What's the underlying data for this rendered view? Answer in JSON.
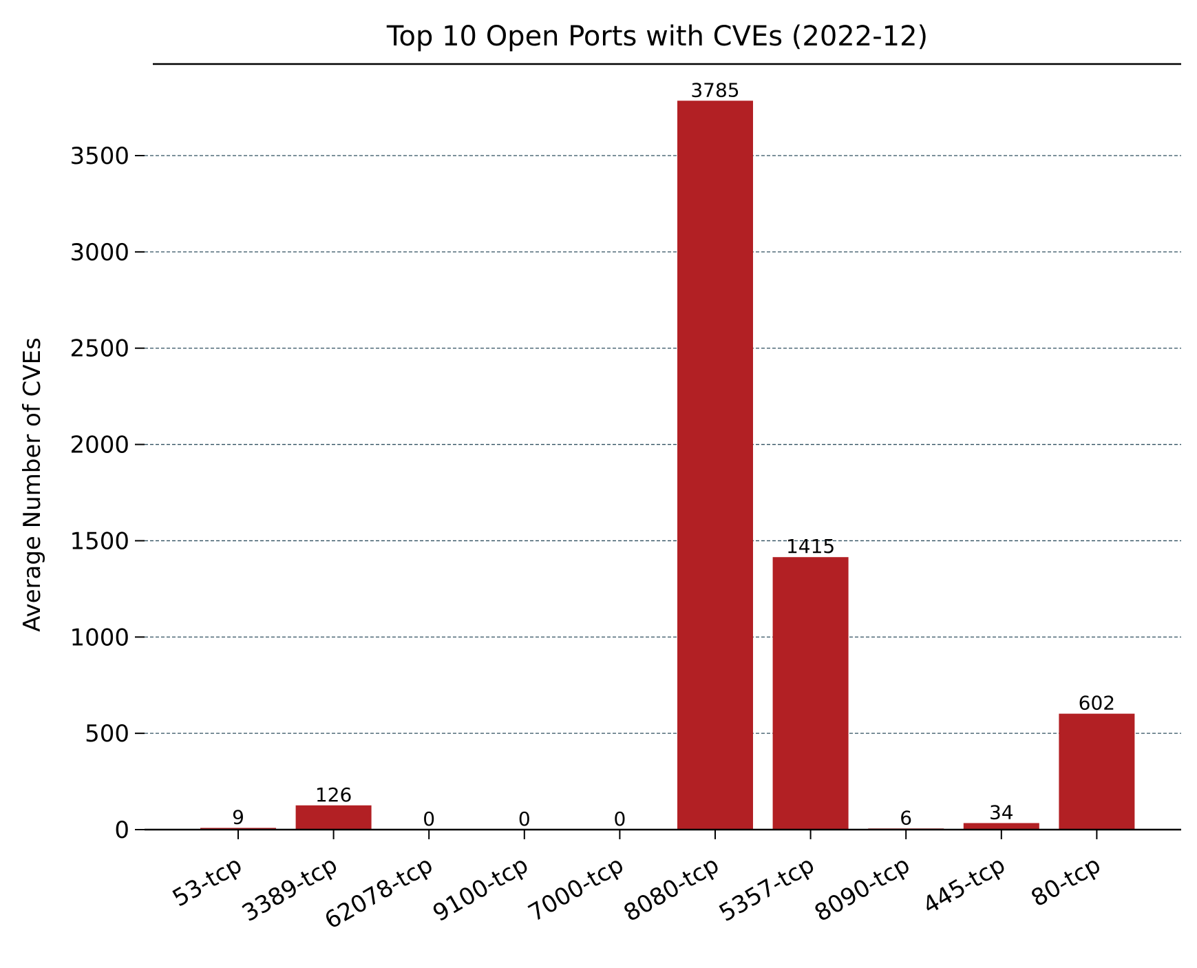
{
  "chart_data": {
    "type": "bar",
    "title": "Top 10 Open Ports with CVEs (2022-12)",
    "xlabel": "",
    "ylabel": "Average Number of CVEs",
    "categories": [
      "53-tcp",
      "3389-tcp",
      "62078-tcp",
      "9100-tcp",
      "7000-tcp",
      "8080-tcp",
      "5357-tcp",
      "8090-tcp",
      "445-tcp",
      "80-tcp"
    ],
    "values": [
      9,
      126,
      0,
      0,
      0,
      3785,
      1415,
      6,
      34,
      602
    ],
    "data_labels": [
      "9",
      "126",
      "0",
      "0",
      "0",
      "3785",
      "1415",
      "6",
      "34",
      "602"
    ],
    "ylim": [
      0,
      3975
    ],
    "yticks": [
      0,
      500,
      1000,
      1500,
      2000,
      2500,
      3000,
      3500
    ],
    "ytick_labels": [
      "0",
      "500",
      "1000",
      "1500",
      "2000",
      "2500",
      "3000",
      "3500"
    ],
    "grid": "horizontal dashed",
    "colors": {
      "bar": "#b22024",
      "grid": "#2f4f5f",
      "axis": "#000000"
    }
  }
}
